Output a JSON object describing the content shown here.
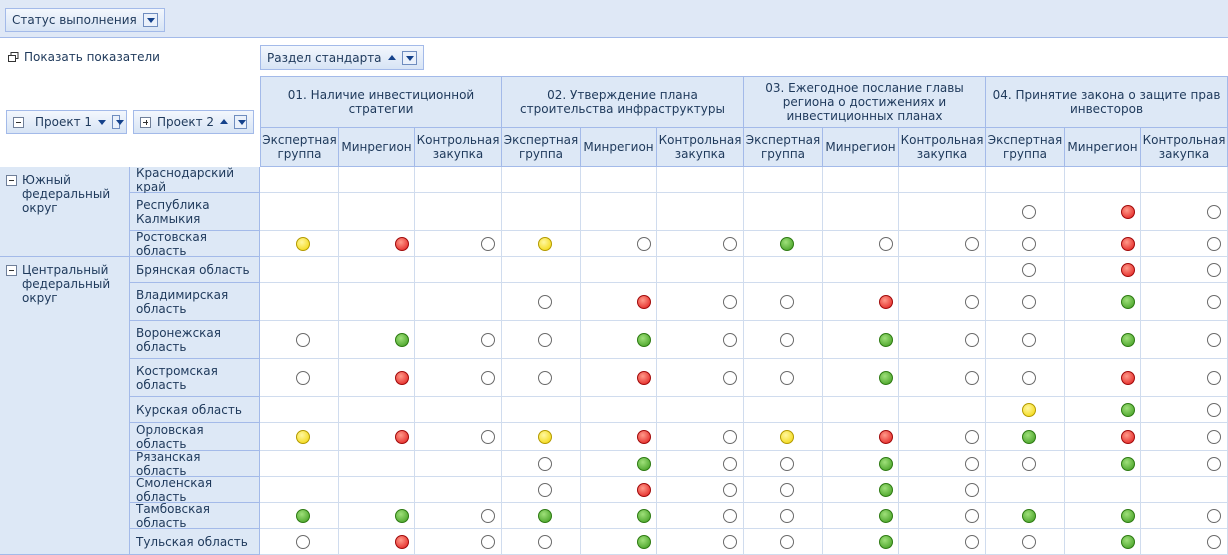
{
  "toolbar": {
    "filter_button": "Статус выполнения"
  },
  "show_indicators": "Показать показатели",
  "column_field": "Раздел стандарта",
  "row_fields": [
    "Проект 1",
    "Проект 2"
  ],
  "columns": {
    "groups": [
      "01. Наличие инвестиционной стратегии",
      "02. Утверждение плана строительства инфраструктуры",
      "03. Ежегодное послание главы региона о достижениях и инвестиционных планах",
      "04. Принятие закона о защите прав инвесторов"
    ],
    "subcolumns": [
      "Экспертная группа",
      "Минрегион",
      "Контрольная закупка"
    ]
  },
  "districts": [
    {
      "name": "Южный федеральный округ",
      "regions": [
        {
          "name": "Краснодарский край",
          "statuses": [
            null,
            null,
            null,
            null,
            null,
            null,
            null,
            null,
            null,
            null,
            null,
            null
          ]
        },
        {
          "name": "Республика Калмыкия",
          "statuses": [
            null,
            null,
            null,
            null,
            null,
            null,
            null,
            null,
            null,
            "white",
            "red",
            "white"
          ]
        },
        {
          "name": "Ростовская область",
          "statuses": [
            "yellow",
            "red",
            "white",
            "yellow",
            "white",
            "white",
            "green",
            "white",
            "white",
            "white",
            "red",
            "white"
          ]
        }
      ]
    },
    {
      "name": "Центральный федеральный округ",
      "regions": [
        {
          "name": "Брянская область",
          "statuses": [
            null,
            null,
            null,
            null,
            null,
            null,
            null,
            null,
            null,
            "white",
            "red",
            "white"
          ]
        },
        {
          "name": "Владимирская область",
          "statuses": [
            null,
            null,
            null,
            "white",
            "red",
            "white",
            "white",
            "red",
            "white",
            "white",
            "green",
            "white"
          ]
        },
        {
          "name": "Воронежская область",
          "statuses": [
            "white",
            "green",
            "white",
            "white",
            "green",
            "white",
            "white",
            "green",
            "white",
            "white",
            "green",
            "white"
          ]
        },
        {
          "name": "Костромская область",
          "statuses": [
            "white",
            "red",
            "white",
            "white",
            "red",
            "white",
            "white",
            "green",
            "white",
            "white",
            "red",
            "white"
          ]
        },
        {
          "name": "Курская область",
          "statuses": [
            null,
            null,
            null,
            null,
            null,
            null,
            null,
            null,
            null,
            "yellow",
            "green",
            "white"
          ]
        },
        {
          "name": "Орловская область",
          "statuses": [
            "yellow",
            "red",
            "white",
            "yellow",
            "red",
            "white",
            "yellow",
            "red",
            "white",
            "green",
            "red",
            "white"
          ]
        },
        {
          "name": "Рязанская область",
          "statuses": [
            null,
            null,
            null,
            "white",
            "green",
            "white",
            "white",
            "green",
            "white",
            "white",
            "green",
            "white"
          ]
        },
        {
          "name": "Смоленская область",
          "statuses": [
            null,
            null,
            null,
            "white",
            "red",
            "white",
            "white",
            "green",
            "white",
            null,
            null,
            null
          ]
        },
        {
          "name": "Тамбовская область",
          "statuses": [
            "green",
            "green",
            "white",
            "green",
            "green",
            "white",
            "white",
            "green",
            "white",
            "green",
            "green",
            "white"
          ]
        },
        {
          "name": "Тульская область",
          "statuses": [
            "white",
            "red",
            "white",
            "white",
            "green",
            "white",
            "white",
            "green",
            "white",
            "white",
            "green",
            "white"
          ]
        }
      ]
    }
  ]
}
